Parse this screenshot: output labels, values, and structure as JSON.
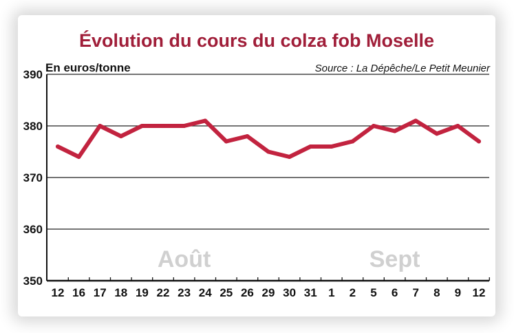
{
  "chart_data": {
    "type": "line",
    "title": "Évolution du cours du colza fob Moselle",
    "unit_label": "En euros/tonne",
    "source": "Source : La Dépêche/Le Petit Meunier",
    "ylim": [
      350,
      390
    ],
    "yticks": [
      350,
      360,
      370,
      380,
      390
    ],
    "grid": true,
    "categories": [
      "12",
      "16",
      "17",
      "18",
      "19",
      "22",
      "23",
      "24",
      "25",
      "26",
      "29",
      "30",
      "31",
      "1",
      "2",
      "5",
      "6",
      "7",
      "8",
      "9",
      "12"
    ],
    "month_labels": [
      {
        "text": "Août",
        "category_index": 6
      },
      {
        "text": "Sept",
        "category_index": 16
      }
    ],
    "series": [
      {
        "color": "#c2233f",
        "values": [
          376,
          374,
          380,
          378,
          380,
          380,
          380,
          381,
          377,
          378,
          375,
          374,
          376,
          376,
          377,
          380,
          379,
          381,
          378.5,
          380,
          377
        ]
      }
    ]
  }
}
